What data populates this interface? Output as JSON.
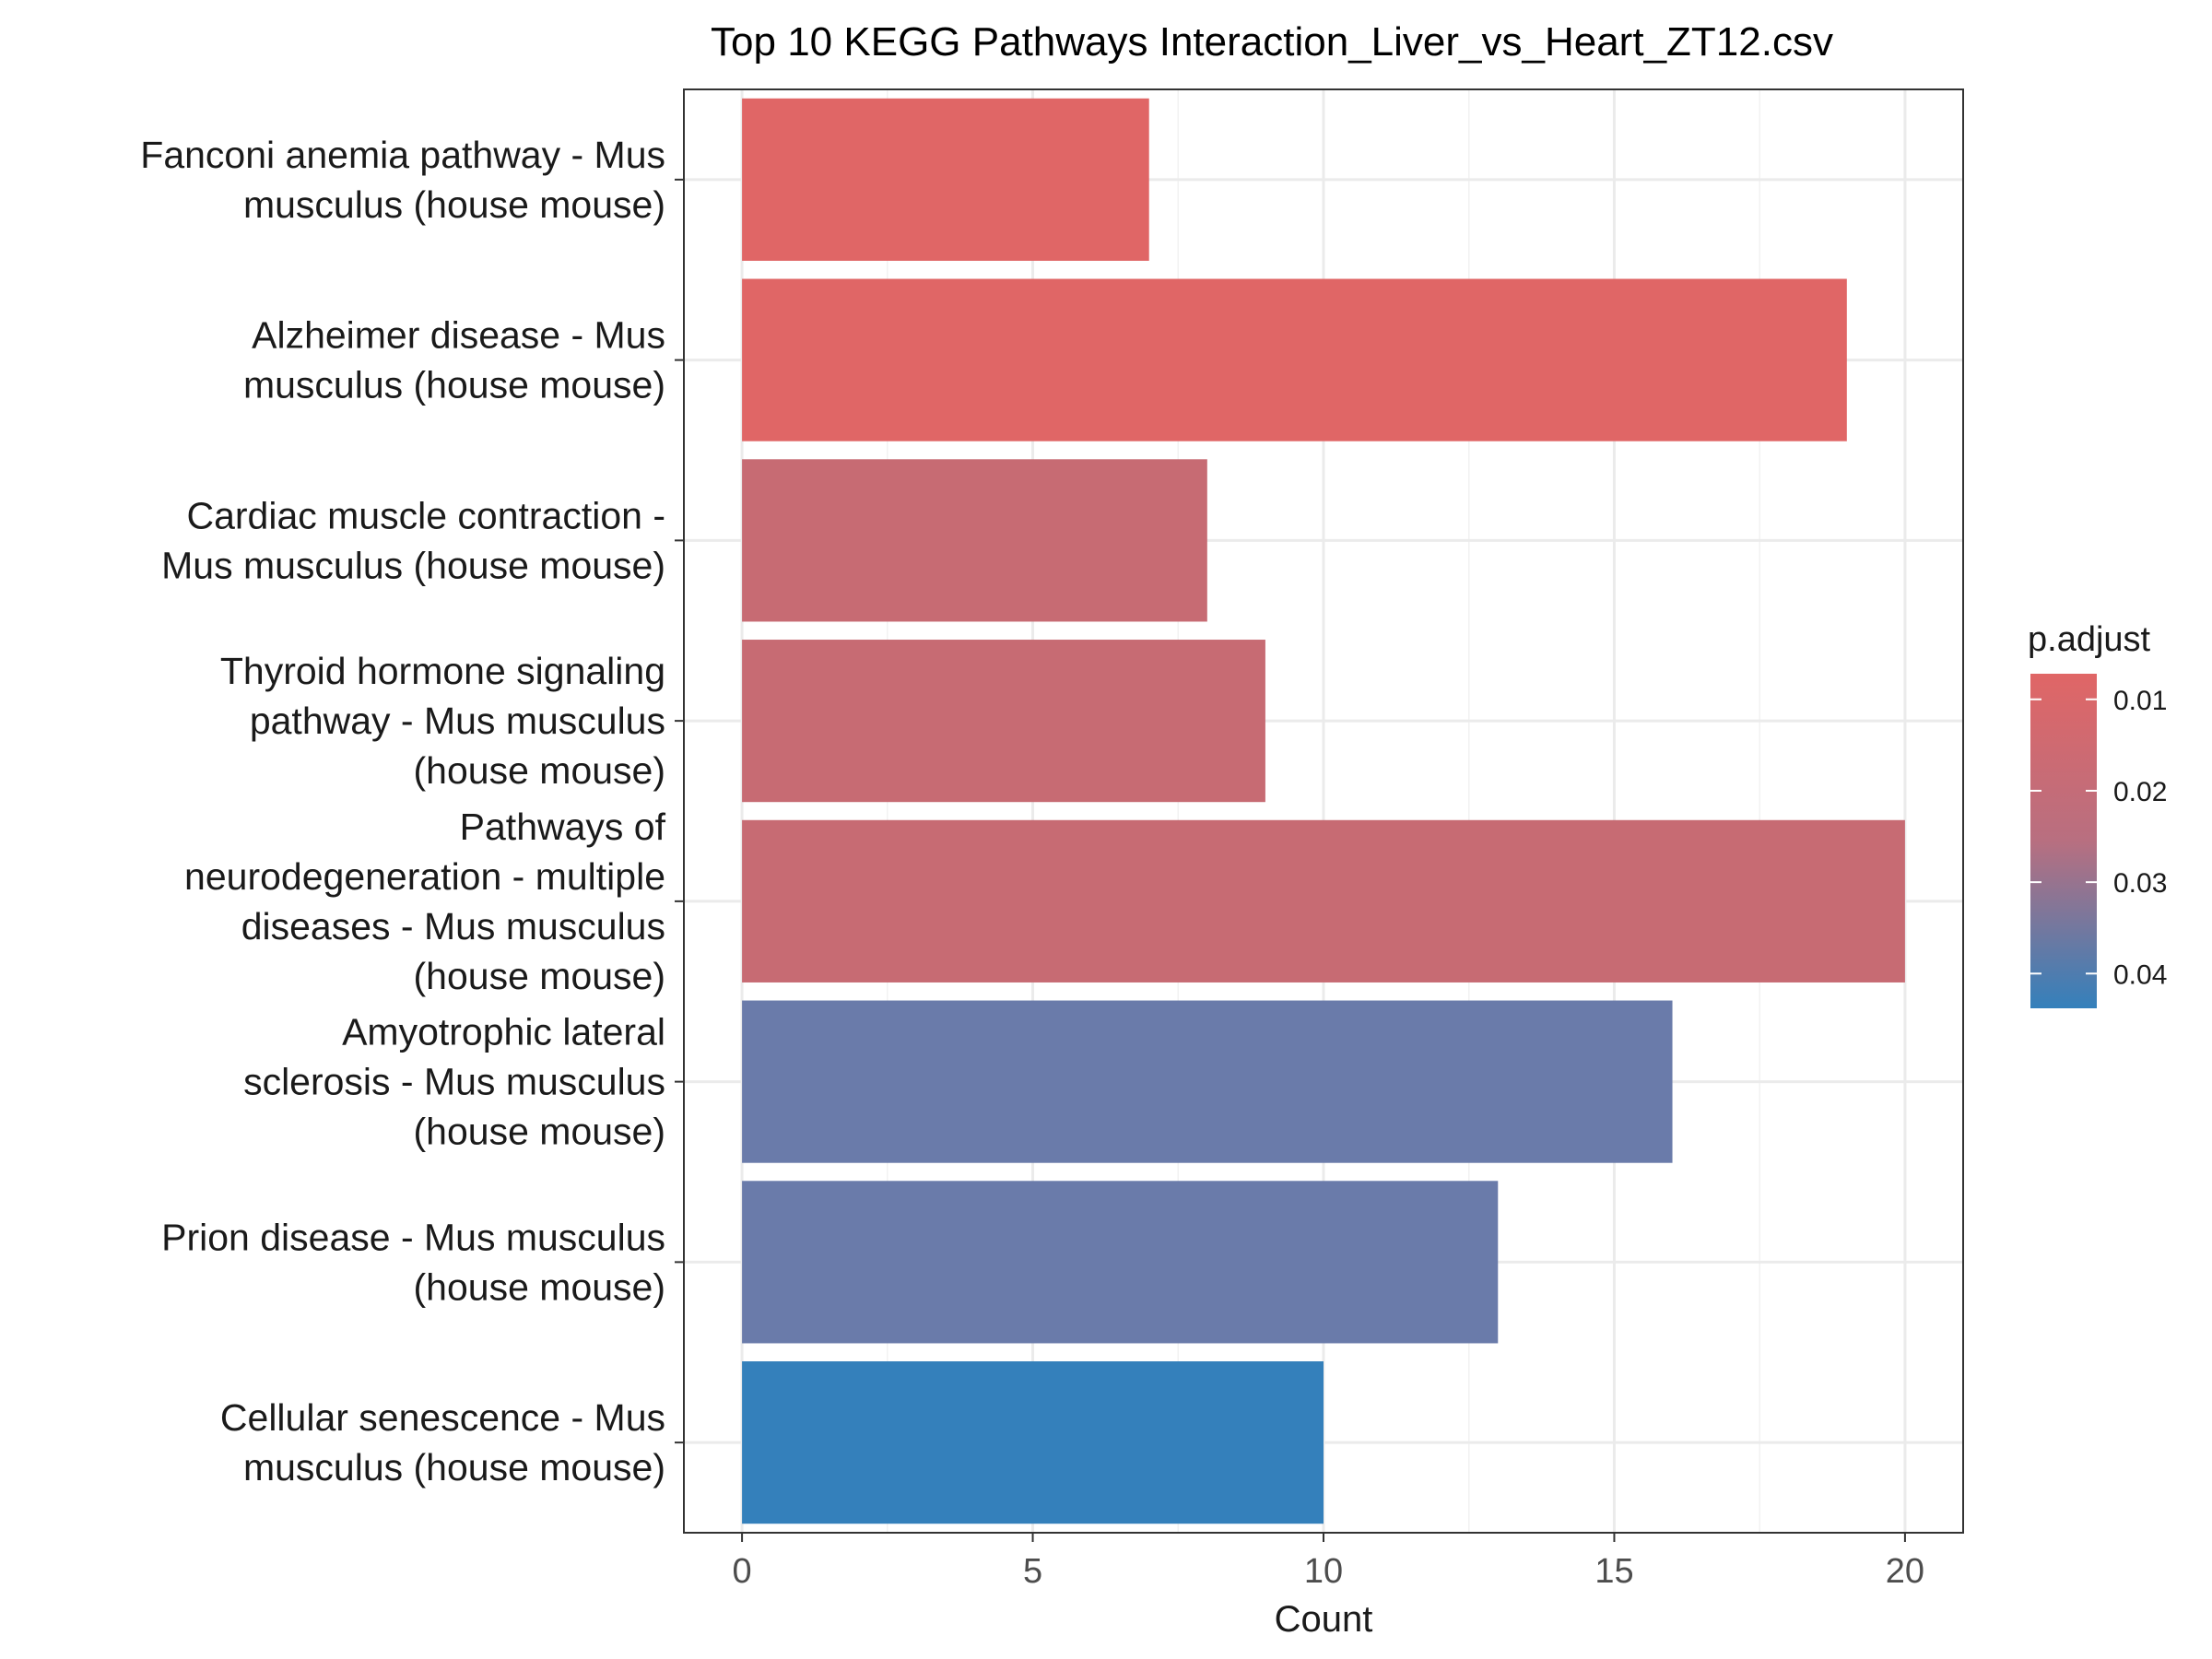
{
  "chart_data": {
    "type": "bar",
    "orientation": "horizontal",
    "title": "Top 10 KEGG Pathways Interaction_Liver_vs_Heart_ZT12.csv",
    "xlabel": "Count",
    "ylabel": "",
    "xlim": [
      -1,
      21
    ],
    "x_ticks": [
      0,
      5,
      10,
      15,
      20
    ],
    "x_tick_labels": [
      "0",
      "5",
      "10",
      "15",
      "20"
    ],
    "grid": true,
    "categories": [
      [
        "Fanconi anemia pathway - Mus",
        "musculus (house mouse)"
      ],
      [
        "Alzheimer disease - Mus",
        "musculus (house mouse)"
      ],
      [
        "Cardiac muscle contraction -",
        "Mus musculus (house mouse)"
      ],
      [
        "Thyroid hormone signaling",
        "pathway - Mus musculus",
        "(house mouse)"
      ],
      [
        "Pathways of",
        "neurodegeneration - multiple",
        "diseases - Mus musculus",
        "(house mouse)"
      ],
      [
        "Amyotrophic lateral",
        "sclerosis - Mus musculus",
        "(house mouse)"
      ],
      [
        "Prion disease - Mus musculus",
        "(house mouse)"
      ],
      [
        "Cellular senescence - Mus",
        "musculus (house mouse)"
      ]
    ],
    "values": [
      7,
      19,
      8,
      9,
      20,
      16,
      13,
      10
    ],
    "colors": [
      "#E06666",
      "#E06666",
      "#C76B73",
      "#C76B73",
      "#C76B73",
      "#6A7BAA",
      "#6A7BAA",
      "#3480BB"
    ],
    "legend": {
      "title": "p.adjust",
      "placement": "right",
      "labels": [
        "0.01",
        "0.02",
        "0.03",
        "0.04"
      ],
      "label_values": [
        0.01,
        0.02,
        0.03,
        0.04
      ],
      "range": [
        0.0072,
        0.0438
      ],
      "color_low_value": "#E06666",
      "color_high_value": "#3480BB"
    }
  }
}
